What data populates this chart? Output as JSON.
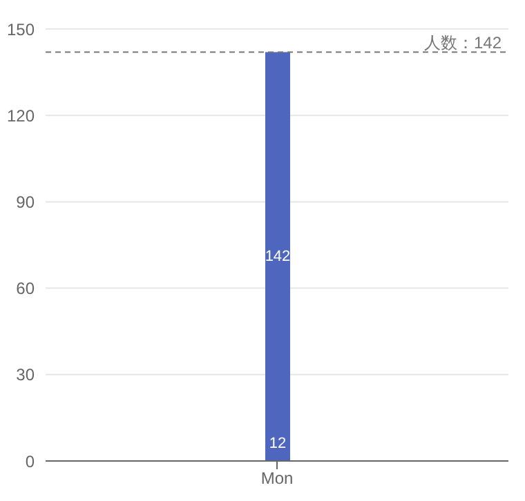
{
  "chart_data": {
    "type": "bar",
    "categories": [
      "Mon"
    ],
    "stacked": true,
    "series": [
      {
        "color": "#4f66bf",
        "values": [
          12
        ],
        "value_labels": [
          "12"
        ]
      },
      {
        "color": "#4f66bf",
        "values": [
          130
        ],
        "value_labels": [
          null
        ]
      }
    ],
    "totals": [
      "142"
    ],
    "ylim": [
      0,
      150
    ],
    "yticks": [
      0,
      30,
      60,
      90,
      120,
      150
    ],
    "grid": "y",
    "ref_lines": [
      {
        "axis": "y",
        "value": 142,
        "label": "人数：142",
        "color": "#777777",
        "line_style": "dashed"
      }
    ]
  }
}
